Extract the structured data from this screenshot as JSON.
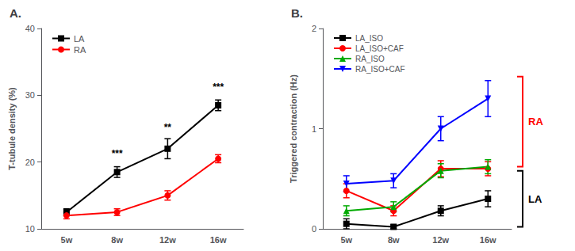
{
  "chart_data": [
    {
      "type": "line",
      "title": "A.",
      "ylabel": "T-tubule density (%)",
      "categories": [
        "5w",
        "8w",
        "12w",
        "16w"
      ],
      "ylim": [
        10,
        40
      ],
      "yticks": [
        10,
        20,
        30,
        40
      ],
      "grid": false,
      "legend": "upper left",
      "series": [
        {
          "name": "LA",
          "color": "#000000",
          "marker": "square",
          "values": [
            12.5,
            18.5,
            22.0,
            28.5
          ],
          "yerr": [
            0.5,
            0.8,
            1.5,
            0.8
          ]
        },
        {
          "name": "RA",
          "color": "#ff0000",
          "marker": "circle",
          "values": [
            12.0,
            12.5,
            15.0,
            20.5
          ],
          "yerr": [
            0.5,
            0.5,
            0.7,
            0.6
          ]
        }
      ],
      "annotations": [
        {
          "x": "8w",
          "y": 20.5,
          "text": "***"
        },
        {
          "x": "12w",
          "y": 24.5,
          "text": "**"
        },
        {
          "x": "16w",
          "y": 30.5,
          "text": "***"
        }
      ]
    },
    {
      "type": "line",
      "title": "B.",
      "ylabel": "Triggered contraction (Hz)",
      "categories": [
        "5w",
        "8w",
        "12w",
        "16w"
      ],
      "ylim": [
        0,
        2.0
      ],
      "yticks": [
        0,
        1,
        2
      ],
      "grid": false,
      "legend": "upper left",
      "series": [
        {
          "name": "LA_ISO",
          "color": "#000000",
          "marker": "square",
          "values": [
            0.05,
            0.02,
            0.18,
            0.3
          ],
          "yerr": [
            0.05,
            0.02,
            0.05,
            0.08
          ]
        },
        {
          "name": "LA_ISO+CAF",
          "color": "#ff0000",
          "marker": "circle",
          "values": [
            0.38,
            0.18,
            0.6,
            0.6
          ],
          "yerr": [
            0.07,
            0.05,
            0.08,
            0.07
          ]
        },
        {
          "name": "RA_ISO",
          "color": "#00aa00",
          "marker": "triangle_up",
          "values": [
            0.18,
            0.22,
            0.58,
            0.62
          ],
          "yerr": [
            0.05,
            0.05,
            0.07,
            0.07
          ]
        },
        {
          "name": "RA_ISO+CAF",
          "color": "#0000ff",
          "marker": "triangle_down",
          "values": [
            0.45,
            0.48,
            1.0,
            1.3
          ],
          "yerr": [
            0.08,
            0.07,
            0.12,
            0.18
          ]
        }
      ],
      "brackets": [
        {
          "label": "RA",
          "y_top": 1.52,
          "y_bottom": 0.62,
          "color": "#ff0000"
        },
        {
          "label": "LA",
          "y_top": 0.58,
          "y_bottom": 0.02,
          "color": "#000000"
        }
      ]
    }
  ]
}
